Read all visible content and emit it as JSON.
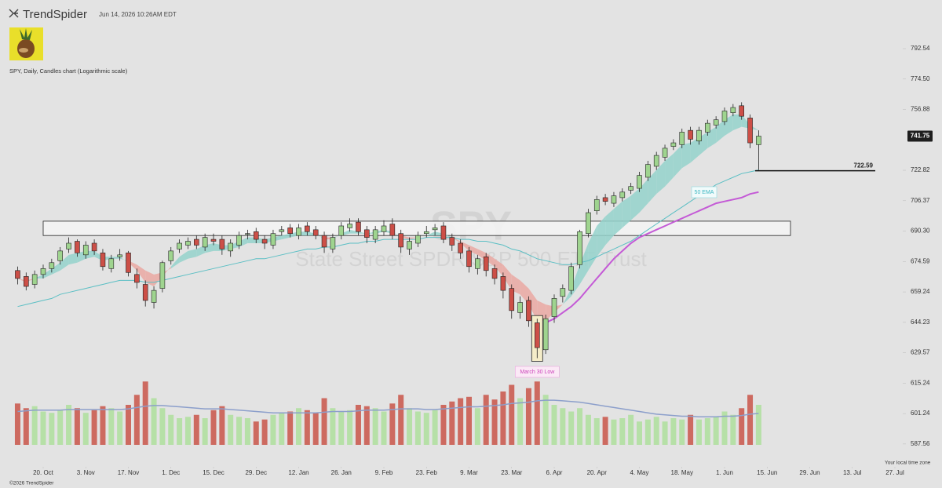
{
  "header": {
    "brand": "TrendSpider",
    "timestamp": "Jun 14, 2026 10:26AM EDT"
  },
  "chart_data": {
    "type": "candlestick",
    "title": "SPY, Daily, Candles chart (Logarithmic scale)",
    "watermark": "SPY",
    "watermark_subtitle": "State Street SPDR S&P 500 ETF Trust",
    "log_scale": true,
    "open": [
      670,
      667,
      663,
      668,
      671,
      675,
      681,
      685,
      678,
      684,
      679,
      671,
      677,
      679,
      668,
      663,
      654,
      661,
      675,
      681,
      683,
      686,
      682,
      686,
      686,
      680,
      683,
      689,
      690,
      686,
      683,
      690,
      692,
      688,
      693,
      691,
      688,
      681,
      688,
      692,
      695,
      691,
      686,
      690,
      694,
      689,
      681,
      684,
      689,
      691,
      693,
      687,
      684,
      680,
      671,
      677,
      671,
      667,
      661,
      649,
      655,
      644,
      631,
      647,
      657,
      660,
      673,
      689,
      701,
      708,
      705,
      708,
      712,
      713,
      719,
      725,
      730,
      736,
      737,
      745,
      739,
      744,
      748,
      750,
      755,
      759,
      752,
      737
    ],
    "high": [
      672,
      669,
      670,
      673,
      676,
      682,
      687,
      686,
      685,
      686,
      681,
      678,
      681,
      680,
      671,
      665,
      662,
      675,
      682,
      686,
      687,
      688,
      689,
      689,
      688,
      686,
      690,
      691,
      692,
      688,
      691,
      693,
      694,
      694,
      695,
      693,
      690,
      689,
      695,
      697,
      697,
      693,
      693,
      696,
      697,
      691,
      687,
      690,
      693,
      694,
      695,
      689,
      686,
      682,
      678,
      679,
      673,
      669,
      663,
      657,
      657,
      646,
      648,
      658,
      663,
      674,
      691,
      702,
      709,
      710,
      711,
      713,
      716,
      722,
      728,
      733,
      737,
      740,
      746,
      747,
      747,
      751,
      753,
      758,
      760,
      761,
      754,
      745
    ],
    "low": [
      663,
      660,
      661,
      666,
      669,
      673,
      679,
      677,
      676,
      678,
      670,
      669,
      675,
      667,
      661,
      652,
      651,
      659,
      673,
      679,
      681,
      681,
      680,
      683,
      678,
      677,
      681,
      686,
      684,
      681,
      681,
      688,
      687,
      686,
      688,
      686,
      679,
      679,
      686,
      690,
      688,
      684,
      684,
      688,
      686,
      679,
      678,
      682,
      687,
      688,
      684,
      680,
      676,
      669,
      668,
      667,
      663,
      656,
      646,
      646,
      642,
      627,
      629,
      644,
      654,
      658,
      671,
      687,
      699,
      704,
      703,
      706,
      710,
      711,
      717,
      723,
      728,
      734,
      735,
      737,
      737,
      742,
      746,
      748,
      753,
      751,
      735,
      723
    ],
    "close": [
      666,
      662,
      668,
      671,
      674,
      680,
      684,
      679,
      683,
      680,
      672,
      676,
      678,
      669,
      664,
      655,
      660,
      674,
      680,
      684,
      685,
      683,
      687,
      685,
      681,
      684,
      688,
      689,
      686,
      684,
      689,
      691,
      689,
      692,
      690,
      688,
      682,
      687,
      693,
      694,
      690,
      687,
      691,
      693,
      688,
      682,
      685,
      688,
      690,
      692,
      686,
      683,
      679,
      672,
      676,
      670,
      666,
      660,
      650,
      654,
      645,
      632,
      646,
      656,
      661,
      672,
      690,
      700,
      707,
      706,
      709,
      711,
      714,
      720,
      726,
      731,
      735,
      738,
      744,
      740,
      745,
      749,
      751,
      756,
      758,
      753,
      738,
      741.75
    ],
    "volume": [
      62,
      55,
      58,
      50,
      48,
      52,
      60,
      55,
      48,
      52,
      58,
      55,
      50,
      60,
      75,
      95,
      70,
      55,
      45,
      40,
      42,
      45,
      40,
      52,
      58,
      45,
      42,
      40,
      35,
      38,
      45,
      48,
      50,
      55,
      52,
      48,
      70,
      55,
      50,
      52,
      60,
      58,
      55,
      50,
      62,
      75,
      55,
      50,
      48,
      52,
      60,
      65,
      70,
      72,
      55,
      75,
      68,
      80,
      90,
      70,
      85,
      95,
      75,
      60,
      55,
      50,
      55,
      45,
      40,
      42,
      38,
      40,
      45,
      35,
      38,
      42,
      35,
      40,
      38,
      45,
      38,
      40,
      42,
      50,
      45,
      55,
      75,
      60
    ],
    "volume_ma": [
      50,
      51,
      52,
      52,
      52,
      52,
      53,
      53,
      53,
      53,
      53,
      53,
      53,
      54,
      56,
      58,
      59,
      59,
      58,
      57,
      56,
      55,
      54,
      54,
      54,
      53,
      52,
      51,
      50,
      49,
      48,
      48,
      48,
      48,
      48,
      48,
      49,
      50,
      50,
      50,
      51,
      52,
      52,
      52,
      53,
      54,
      54,
      54,
      53,
      53,
      54,
      55,
      56,
      57,
      57,
      58,
      59,
      60,
      62,
      63,
      64,
      66,
      67,
      67,
      66,
      65,
      64,
      62,
      60,
      58,
      56,
      54,
      52,
      50,
      48,
      46,
      45,
      44,
      43,
      43,
      42,
      42,
      42,
      43,
      43,
      44,
      46,
      47
    ],
    "ribbon_fast": [
      666,
      664,
      666,
      668,
      671,
      674,
      678,
      679,
      680,
      680,
      677,
      677,
      677,
      674,
      670,
      664,
      662,
      667,
      672,
      677,
      680,
      681,
      683,
      684,
      683,
      683,
      685,
      687,
      687,
      686,
      687,
      688,
      689,
      690,
      690,
      689,
      686,
      686,
      689,
      691,
      690,
      689,
      690,
      691,
      690,
      687,
      686,
      687,
      688,
      690,
      689,
      687,
      684,
      680,
      678,
      675,
      672,
      667,
      660,
      658,
      653,
      645,
      645,
      649,
      653,
      661,
      673,
      684,
      693,
      698,
      702,
      706,
      709,
      713,
      718,
      723,
      728,
      732,
      737,
      738,
      741,
      744,
      747,
      751,
      754,
      754,
      748,
      745
    ],
    "ribbon_slow": [
      666,
      665,
      666,
      666,
      668,
      670,
      673,
      674,
      676,
      677,
      675,
      676,
      676,
      675,
      673,
      670,
      668,
      669,
      671,
      674,
      676,
      677,
      679,
      680,
      680,
      681,
      682,
      684,
      684,
      684,
      685,
      686,
      687,
      688,
      688,
      688,
      687,
      687,
      688,
      689,
      689,
      689,
      689,
      690,
      689,
      688,
      687,
      687,
      688,
      688,
      688,
      687,
      685,
      683,
      681,
      679,
      676,
      673,
      668,
      665,
      661,
      655,
      653,
      652,
      653,
      657,
      663,
      670,
      677,
      683,
      688,
      692,
      696,
      700,
      705,
      710,
      714,
      719,
      724,
      727,
      731,
      735,
      738,
      742,
      745,
      747,
      746,
      745
    ],
    "ema50": [
      652,
      653,
      654,
      655,
      656,
      658,
      659,
      660,
      661,
      662,
      663,
      664,
      665,
      665,
      665,
      664,
      664,
      665,
      666,
      667,
      668,
      669,
      670,
      671,
      672,
      673,
      674,
      675,
      676,
      676,
      677,
      678,
      679,
      680,
      681,
      681,
      682,
      682,
      683,
      684,
      684,
      685,
      685,
      686,
      686,
      686,
      686,
      686,
      687,
      687,
      687,
      687,
      686,
      686,
      685,
      685,
      684,
      683,
      681,
      680,
      678,
      676,
      675,
      674,
      673,
      673,
      674,
      675,
      677,
      679,
      681,
      683,
      685,
      688,
      691,
      694,
      697,
      700,
      703,
      706,
      709,
      712,
      715,
      717,
      719,
      721,
      722,
      723
    ],
    "anchored_line": [
      null,
      null,
      null,
      null,
      null,
      null,
      null,
      null,
      null,
      null,
      null,
      null,
      null,
      null,
      null,
      null,
      null,
      null,
      null,
      null,
      null,
      null,
      null,
      null,
      null,
      null,
      null,
      null,
      null,
      null,
      null,
      null,
      null,
      null,
      null,
      null,
      null,
      null,
      null,
      null,
      null,
      null,
      null,
      null,
      null,
      null,
      null,
      null,
      null,
      null,
      null,
      null,
      null,
      null,
      null,
      null,
      null,
      null,
      null,
      null,
      null,
      null,
      644,
      646,
      649,
      652,
      656,
      661,
      666,
      671,
      676,
      680,
      684,
      687,
      689,
      691,
      693,
      695,
      697,
      699,
      701,
      703,
      705,
      706,
      707,
      708,
      710,
      711
    ],
    "colors": {
      "up": "#9fd48f",
      "down": "#cc4f47",
      "volume_up": "#b6e0a7",
      "volume_down": "#cd6a60",
      "ribbon_up": "#94d2cb",
      "ribbon_down": "#eaa8a2",
      "ema50": "#5bbfc4",
      "anchored": "#c45ad6",
      "volume_ma": "#8c9fcb"
    },
    "ylim": [
      579.2,
      817.4
    ],
    "yticks": [
      {
        "value": 587.56,
        "label": "587.56"
      },
      601.24,
      615.24,
      629.57,
      644.23,
      659.24,
      674.59,
      {
        "value": 690.3,
        "label": "690.30"
      },
      706.37,
      722.82,
      756.88,
      {
        "value": 774.5,
        "label": "774.50"
      },
      792.54
    ],
    "xlim": [
      -1,
      105
    ],
    "xticks": [
      {
        "value": 3,
        "label": "20. Oct"
      },
      {
        "value": 8,
        "label": "3. Nov"
      },
      {
        "value": 13,
        "label": "17. Nov"
      },
      {
        "value": 18,
        "label": "1. Dec"
      },
      {
        "value": 23,
        "label": "15. Dec"
      },
      {
        "value": 28,
        "label": "29. Dec"
      },
      {
        "value": 33,
        "label": "12. Jan"
      },
      {
        "value": 38,
        "label": "26. Jan"
      },
      {
        "value": 43,
        "label": "9. Feb"
      },
      {
        "value": 48,
        "label": "23. Feb"
      },
      {
        "value": 53,
        "label": "9. Mar"
      },
      {
        "value": 58,
        "label": "23. Mar"
      },
      {
        "value": 63,
        "label": "6. Apr"
      },
      {
        "value": 68,
        "label": "20. Apr"
      },
      {
        "value": 73,
        "label": "4. May"
      },
      {
        "value": 78,
        "label": "18. May"
      },
      {
        "value": 83,
        "label": "1. Jun"
      },
      {
        "value": 88,
        "label": "15. Jun"
      },
      {
        "value": 93,
        "label": "29. Jun"
      },
      {
        "value": 98,
        "label": "13. Jul"
      },
      {
        "value": 103,
        "label": "27. Jul"
      }
    ],
    "last_price": 741.75,
    "level": 722.59,
    "zone": [
      688,
      695.5
    ],
    "ema_label": "50 EMA",
    "low_label": "March 30 Low",
    "time_zone_note": "Your local time zone"
  },
  "footer": {
    "copyright": "©2026 TrendSpider"
  }
}
